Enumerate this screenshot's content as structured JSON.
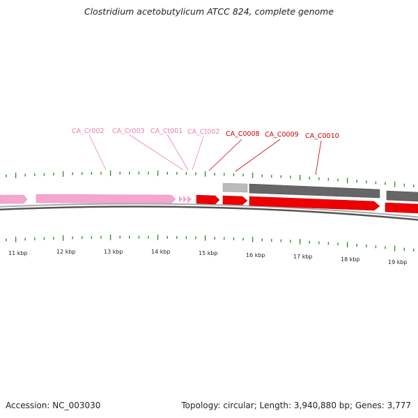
{
  "title": "Clostridium acetobutylicum ATCC 824, complete genome",
  "footer": {
    "accession": "Accession: NC_003030",
    "summary": "Topology: circular; Length: 3,940,880 bp; Genes: 3,777"
  },
  "colors": {
    "rna_gene": "#f4a6cf",
    "protein_gene": "#ee0000",
    "cds_light": "#bbbbbb",
    "cds_dark": "#666666",
    "backbone": "#888888",
    "tick": "#2f8f2f",
    "label_rna": "#ea7fb6",
    "label_protein": "#cc0000"
  },
  "gene_labels": [
    {
      "name": "CA_Cr002",
      "type": "rna"
    },
    {
      "name": "CA_Cr003",
      "type": "rna"
    },
    {
      "name": "CA_Ct001",
      "type": "rna"
    },
    {
      "name": "CA_Ct002",
      "type": "rna"
    },
    {
      "name": "CA_C0008",
      "type": "protein"
    },
    {
      "name": "CA_C0009",
      "type": "protein"
    },
    {
      "name": "CA_C0010",
      "type": "protein"
    }
  ],
  "tick_labels": [
    "11 kbp",
    "12 kbp",
    "13 kbp",
    "14 kbp",
    "15 kbp",
    "16 kbp",
    "17 kbp",
    "18 kbp",
    "19 kbp"
  ]
}
